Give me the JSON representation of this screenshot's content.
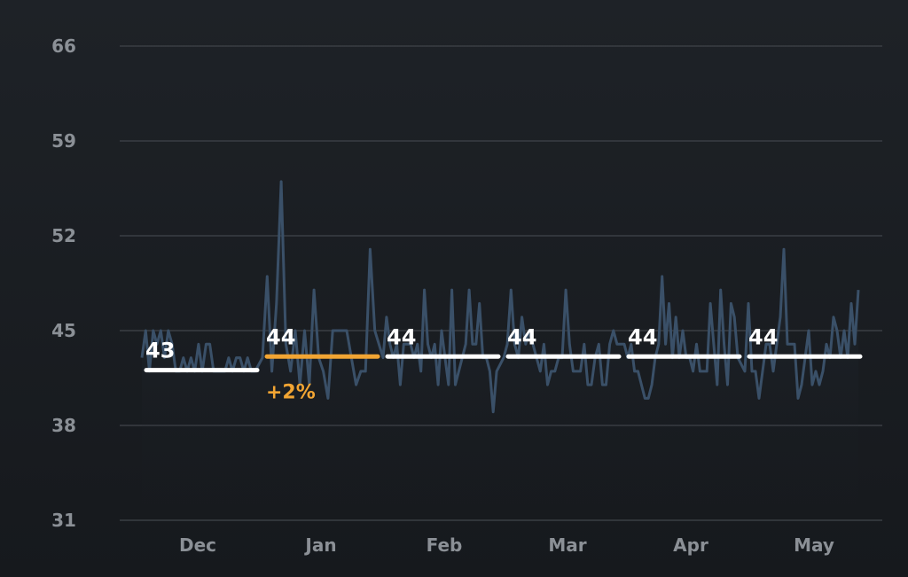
{
  "colors": {
    "line": "#3a5068",
    "grid": "#3a3e44",
    "average": "#ffffff",
    "highlight": "#f2a533",
    "tick_text": "#8b9096"
  },
  "chart_data": {
    "type": "line",
    "title": "",
    "xlabel": "",
    "ylabel": "",
    "ylim": [
      31,
      66
    ],
    "yticks": [
      {
        "value": 66,
        "label": "66"
      },
      {
        "value": 59,
        "label": "59"
      },
      {
        "value": 52,
        "label": "52"
      },
      {
        "value": 45,
        "label": "45"
      },
      {
        "value": 38,
        "label": "38"
      },
      {
        "value": 31,
        "label": "31"
      }
    ],
    "grid": true,
    "months": [
      {
        "label": "Dec",
        "average": 43,
        "average_label": "43",
        "highlight": false,
        "change_label": ""
      },
      {
        "label": "Jan",
        "average": 44,
        "average_label": "44",
        "highlight": true,
        "change_label": "+2%"
      },
      {
        "label": "Feb",
        "average": 44,
        "average_label": "44",
        "highlight": false,
        "change_label": ""
      },
      {
        "label": "Mar",
        "average": 44,
        "average_label": "44",
        "highlight": false,
        "change_label": ""
      },
      {
        "label": "Apr",
        "average": 44,
        "average_label": "44",
        "highlight": false,
        "change_label": ""
      },
      {
        "label": "May",
        "average": 44,
        "average_label": "44",
        "highlight": false,
        "change_label": ""
      }
    ],
    "series": [
      {
        "values": [
          [
            43,
            45,
            42,
            45,
            44,
            45,
            43,
            45,
            44,
            42,
            42,
            43,
            42,
            43,
            42,
            44,
            42,
            44,
            44,
            42,
            42,
            42,
            42,
            43,
            42,
            43,
            43,
            42,
            43,
            42,
            42
          ],
          [
            43,
            49,
            42,
            47,
            56,
            44,
            42,
            45,
            41,
            45,
            41,
            48,
            43,
            42,
            40,
            45,
            45,
            45,
            45,
            43,
            41,
            42,
            42,
            51,
            45
          ],
          [
            43,
            46,
            44,
            43,
            44,
            41,
            44,
            44,
            44,
            43,
            44,
            42,
            48,
            44,
            43,
            44,
            41,
            45,
            43,
            41,
            48,
            41,
            42,
            43,
            44,
            48,
            44,
            44,
            47,
            43,
            43,
            42,
            39,
            42
          ],
          [
            43,
            44,
            48,
            44,
            43,
            46,
            44,
            45,
            44,
            43,
            42,
            44,
            41,
            42,
            42,
            43,
            43,
            48,
            44,
            42,
            42,
            42,
            44,
            41,
            41,
            43,
            44,
            41,
            41,
            44,
            45,
            44
          ],
          [
            44,
            43,
            44,
            42,
            42,
            41,
            40,
            40,
            41,
            43,
            44,
            49,
            44,
            47,
            43,
            46,
            43,
            45,
            43,
            43,
            42,
            44,
            42,
            42,
            42,
            47,
            44,
            41,
            48,
            44,
            41,
            47,
            46,
            43
          ],
          [
            42,
            47,
            42,
            42,
            40,
            42,
            44,
            44,
            42,
            44,
            46,
            51,
            44,
            44,
            44,
            40,
            41,
            43,
            45,
            41,
            42,
            41,
            42,
            44,
            43,
            46,
            45,
            43,
            45,
            43,
            47,
            44,
            48
          ]
        ]
      }
    ]
  }
}
